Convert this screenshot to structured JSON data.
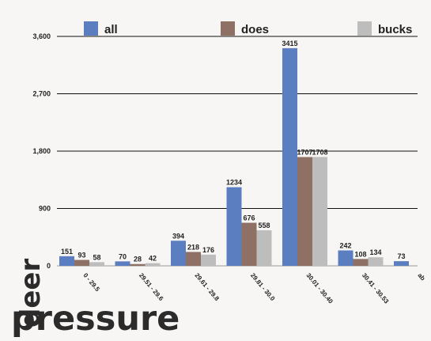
{
  "chart_data": {
    "type": "bar",
    "categories": [
      "0 - 29.5",
      "29.51 - 29.6",
      "29.61 - 29.8",
      "29.81 - 30.0",
      "30.01 - 30.40",
      "30.41 - 30.53",
      "ab"
    ],
    "series": [
      {
        "name": "all",
        "color": "#5b7ec0",
        "values": [
          151,
          70,
          394,
          1234,
          3415,
          242,
          73
        ],
        "labels": [
          "151",
          "70",
          "394",
          "1234",
          "3415",
          "242",
          "73"
        ]
      },
      {
        "name": "does",
        "color": "#8e7164",
        "values": [
          93,
          28,
          218,
          676,
          1707,
          108,
          3
        ],
        "labels": [
          "93",
          "28",
          "218",
          "676",
          "1707",
          "108",
          "3"
        ]
      },
      {
        "name": "bucks",
        "color": "#bdbdbd",
        "values": [
          58,
          42,
          176,
          558,
          1708,
          134,
          null
        ],
        "labels": [
          "58",
          "42",
          "176",
          "558",
          "1708",
          "134",
          ""
        ]
      }
    ],
    "ylim": [
      0,
      3600
    ],
    "yticks": [
      0,
      900,
      1800,
      2700,
      3600
    ],
    "ytick_labels": [
      "0",
      "900",
      "1,800",
      "2,700",
      "3,600"
    ],
    "grid": true,
    "legend_position": "top"
  },
  "overlay": {
    "word1": "deer",
    "word2": "pressure"
  }
}
